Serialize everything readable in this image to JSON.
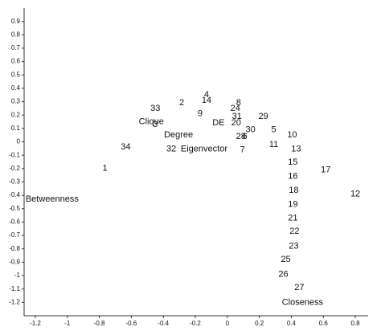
{
  "chart_data": {
    "type": "scatter",
    "labels": [
      "4",
      "14",
      "8",
      "2",
      "33",
      "24",
      "9",
      "31",
      "29",
      "Clique",
      "3",
      "DE",
      "20",
      "30",
      "5",
      "Degree",
      "28",
      "6",
      "10",
      "11",
      "34",
      "32",
      "Eigenvector",
      "7",
      "13",
      "15",
      "1",
      "17",
      "16",
      "18",
      "12",
      "Betweenness",
      "19",
      "21",
      "22",
      "23",
      "25",
      "26",
      "27",
      "Closeness"
    ],
    "x": [
      -0.13,
      -0.13,
      0.07,
      -0.285,
      -0.45,
      0.05,
      -0.17,
      0.06,
      0.225,
      -0.475,
      -0.45,
      -0.055,
      0.055,
      0.145,
      0.29,
      -0.305,
      0.085,
      0.11,
      0.405,
      0.29,
      -0.635,
      -0.35,
      -0.145,
      0.095,
      0.43,
      0.41,
      -0.765,
      0.615,
      0.41,
      0.415,
      0.8,
      -1.095,
      0.41,
      0.41,
      0.42,
      0.415,
      0.365,
      0.35,
      0.45,
      0.47
    ],
    "y": [
      0.35,
      0.31,
      0.29,
      0.29,
      0.25,
      0.25,
      0.21,
      0.19,
      0.19,
      0.15,
      0.13,
      0.14,
      0.14,
      0.09,
      0.09,
      0.05,
      0.04,
      0.04,
      0.05,
      -0.02,
      -0.04,
      -0.055,
      -0.055,
      -0.06,
      -0.055,
      -0.155,
      -0.2,
      -0.21,
      -0.26,
      -0.365,
      -0.39,
      -0.43,
      -0.47,
      -0.57,
      -0.67,
      -0.78,
      -0.88,
      -0.99,
      -1.09,
      -1.2
    ],
    "xlim": [
      -1.27,
      0.88
    ],
    "ylim": [
      -1.3,
      1.0
    ],
    "xticks": [
      -1.2,
      -1,
      -0.8,
      -0.6,
      -0.4,
      -0.2,
      0,
      0.2,
      0.4,
      0.6,
      0.8
    ],
    "yticks": [
      0.9,
      0.8,
      0.7,
      0.6,
      0.5,
      0.4,
      0.3,
      0.2,
      0.1,
      0,
      -0.1,
      -0.2,
      -0.3,
      -0.4,
      -0.5,
      -0.6,
      -0.7,
      -0.8,
      -0.9,
      -1,
      -1.1,
      -1.2
    ]
  }
}
